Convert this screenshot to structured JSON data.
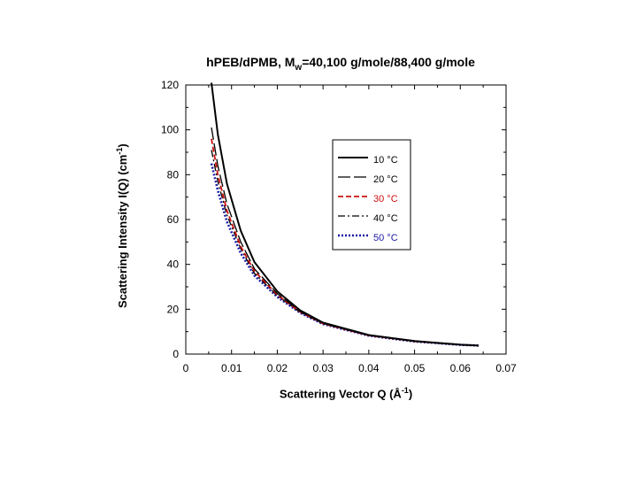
{
  "chart_data": {
    "type": "line",
    "title_main": "hPEB/dPMB, M",
    "title_sub": "w",
    "title_rest": "=40,100 g/mole/88,400 g/mole",
    "xlabel_main": "Scattering Vector Q (Å",
    "xlabel_sup": "-1",
    "xlabel_end": ")",
    "ylabel_main": "Scattering Intensity I(Q) (cm",
    "ylabel_sup": "-1",
    "ylabel_end": ")",
    "xlim": [
      0,
      0.07
    ],
    "ylim": [
      0,
      120
    ],
    "xticks": [
      "0",
      "0.01",
      "0.02",
      "0.03",
      "0.04",
      "0.05",
      "0.06",
      "0.07"
    ],
    "yticks": [
      "0",
      "20",
      "40",
      "60",
      "80",
      "100",
      "120"
    ],
    "legend_position": "top-right",
    "series": [
      {
        "name": "10 °C",
        "color": "#000000",
        "dash": "solid",
        "x": [
          0.0056,
          0.007,
          0.009,
          0.012,
          0.015,
          0.02,
          0.025,
          0.03,
          0.04,
          0.05,
          0.06,
          0.064
        ],
        "y": [
          121,
          98,
          76,
          55,
          41,
          28,
          19.5,
          14,
          8.5,
          5.8,
          4.2,
          3.8
        ]
      },
      {
        "name": "20 °C",
        "color": "#000000",
        "dash": "longdash",
        "x": [
          0.0056,
          0.007,
          0.009,
          0.012,
          0.015,
          0.02,
          0.025,
          0.03,
          0.04,
          0.05,
          0.06,
          0.064
        ],
        "y": [
          101,
          84,
          67,
          50,
          38,
          27,
          19,
          13.7,
          8.4,
          5.7,
          4.2,
          3.8
        ]
      },
      {
        "name": "30 °C",
        "color": "#cc1111",
        "dash": "dashed",
        "x": [
          0.0056,
          0.007,
          0.009,
          0.012,
          0.015,
          0.02,
          0.025,
          0.03,
          0.04,
          0.05,
          0.06,
          0.064
        ],
        "y": [
          96,
          80,
          64,
          48,
          37,
          26.5,
          18.8,
          13.6,
          8.3,
          5.7,
          4.2,
          3.8
        ]
      },
      {
        "name": "40 °C",
        "color": "#000000",
        "dash": "dashdot",
        "x": [
          0.0056,
          0.007,
          0.009,
          0.012,
          0.015,
          0.02,
          0.025,
          0.03,
          0.04,
          0.05,
          0.06,
          0.064
        ],
        "y": [
          91,
          77,
          62,
          47,
          36,
          26,
          18.6,
          13.5,
          8.3,
          5.7,
          4.2,
          3.8
        ]
      },
      {
        "name": "50 °C",
        "color": "#1a1aa6",
        "dash": "dotted",
        "x": [
          0.0056,
          0.007,
          0.009,
          0.012,
          0.015,
          0.02,
          0.025,
          0.03,
          0.04,
          0.05,
          0.06,
          0.064
        ],
        "y": [
          85,
          73,
          59,
          45,
          35,
          25.5,
          18.4,
          13.4,
          8.2,
          5.6,
          4.1,
          3.8
        ]
      }
    ]
  }
}
